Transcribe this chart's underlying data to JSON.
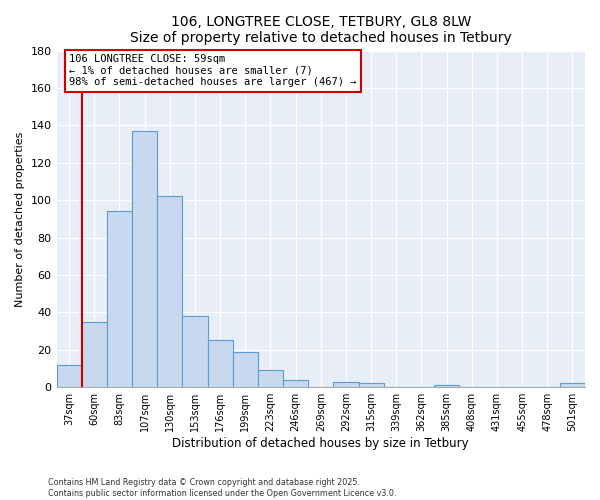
{
  "title": "106, LONGTREE CLOSE, TETBURY, GL8 8LW",
  "subtitle": "Size of property relative to detached houses in Tetbury",
  "xlabel": "Distribution of detached houses by size in Tetbury",
  "ylabel": "Number of detached properties",
  "bin_labels": [
    "37sqm",
    "60sqm",
    "83sqm",
    "107sqm",
    "130sqm",
    "153sqm",
    "176sqm",
    "199sqm",
    "223sqm",
    "246sqm",
    "269sqm",
    "292sqm",
    "315sqm",
    "339sqm",
    "362sqm",
    "385sqm",
    "408sqm",
    "431sqm",
    "455sqm",
    "478sqm",
    "501sqm"
  ],
  "bar_values": [
    12,
    35,
    94,
    137,
    102,
    38,
    25,
    19,
    9,
    4,
    0,
    3,
    2,
    0,
    0,
    1,
    0,
    0,
    0,
    0,
    2
  ],
  "bar_color": "#c8d9ef",
  "bar_edge_color": "#5b9bd5",
  "vline_x": 0.5,
  "vline_color": "#cc0000",
  "ylim": [
    0,
    180
  ],
  "yticks": [
    0,
    20,
    40,
    60,
    80,
    100,
    120,
    140,
    160,
    180
  ],
  "annotation_title": "106 LONGTREE CLOSE: 59sqm",
  "annotation_line1": "← 1% of detached houses are smaller (7)",
  "annotation_line2": "98% of semi-detached houses are larger (467) →",
  "annotation_box_color": "#ffffff",
  "annotation_box_edge": "#cc0000",
  "footer1": "Contains HM Land Registry data © Crown copyright and database right 2025.",
  "footer2": "Contains public sector information licensed under the Open Government Licence v3.0.",
  "background_color": "#ffffff",
  "plot_bg_color": "#e8eef8",
  "grid_color": "#ffffff",
  "title_fontsize": 10,
  "subtitle_fontsize": 9
}
